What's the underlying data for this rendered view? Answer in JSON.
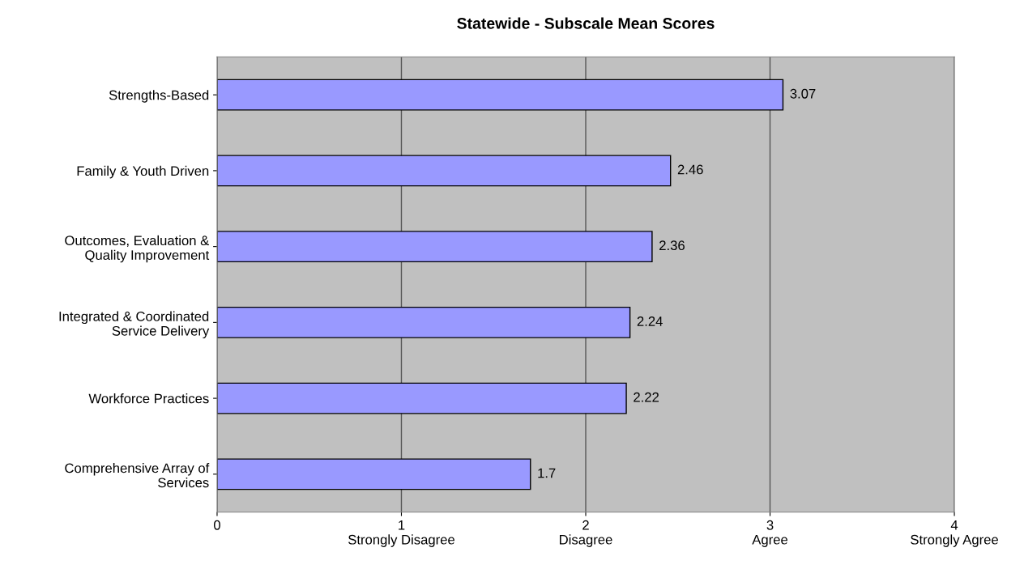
{
  "chart_data": {
    "type": "bar",
    "orientation": "horizontal",
    "title": "Statewide - Subscale Mean Scores",
    "categories": [
      "Strengths-Based",
      "Family & Youth Driven",
      "Outcomes, Evaluation &\nQuality Improvement",
      "Integrated & Coordinated\nService Delivery",
      "Workforce Practices",
      "Comprehensive Array of\nServices"
    ],
    "values": [
      3.07,
      2.46,
      2.36,
      2.24,
      2.22,
      1.7
    ],
    "color": "#9999ff",
    "data_labels": true,
    "grid": "x",
    "xlim": [
      0,
      4
    ],
    "xticks": [
      0,
      {
        "value": 1,
        "label": "1\nStrongly Disagree"
      },
      {
        "value": 2,
        "label": "2\nDisagree"
      },
      {
        "value": 3,
        "label": "3\nAgree"
      },
      {
        "value": 4,
        "label": "4\nStrongly Agree"
      }
    ]
  }
}
